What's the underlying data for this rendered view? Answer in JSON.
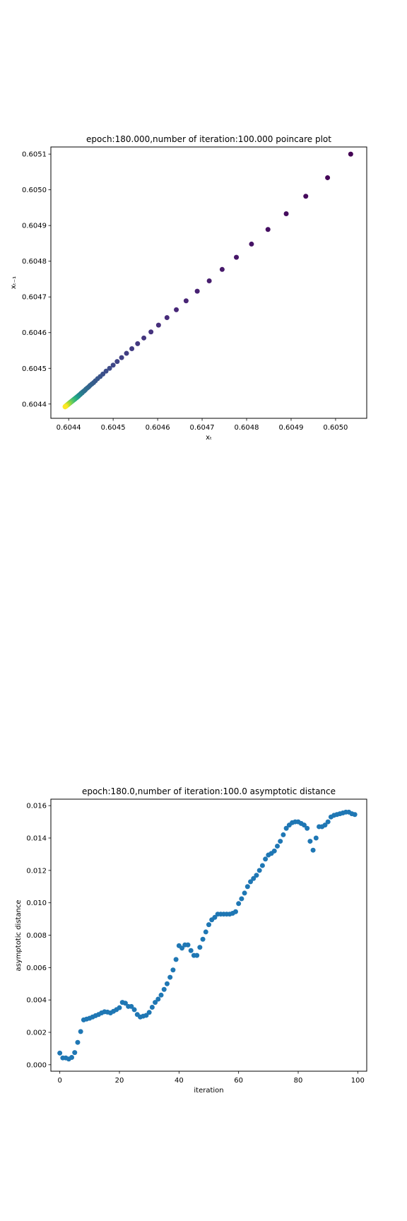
{
  "chart_data": [
    {
      "type": "scatter",
      "title": "epoch:180.000,number of iteration:100.000 poincare plot",
      "xlabel": "xₜ",
      "ylabel": "xₜ₋₁",
      "xlim": [
        0.60436,
        0.60507
      ],
      "ylim": [
        0.60436,
        0.60512
      ],
      "xticks": [
        "0.6044",
        "0.6045",
        "0.6046",
        "0.6047",
        "0.6048",
        "0.6049",
        "0.6050"
      ],
      "yticks": [
        "0.6044",
        "0.6045",
        "0.6046",
        "0.6047",
        "0.6048",
        "0.6049",
        "0.6050",
        "0.6051"
      ],
      "colormap": "viridis",
      "color_by": "point order (first point purple, last point yellow)",
      "series": [
        {
          "x": [
            0.605034,
            0.604982,
            0.604933,
            0.604889,
            0.604848,
            0.604811,
            0.604777,
            0.604745,
            0.604716,
            0.604689,
            0.604664,
            0.604642,
            0.604621,
            0.604602,
            0.604585,
            0.604569,
            0.604555,
            0.604542,
            0.60453,
            0.604519,
            0.604509,
            0.6045,
            0.604492,
            0.604484,
            0.604477,
            0.604471,
            0.604465,
            0.60446,
            0.604456,
            0.604452,
            0.604448,
            0.604445,
            0.604442,
            0.604439,
            0.604437,
            0.604435,
            0.604433,
            0.604431,
            0.60443,
            0.604428,
            0.604427,
            0.604426,
            0.604425,
            0.604424,
            0.604423,
            0.604422,
            0.604422,
            0.604421,
            0.60442,
            0.60442,
            0.604419,
            0.604418,
            0.604418,
            0.604417,
            0.604417,
            0.604416,
            0.604415,
            0.604415,
            0.604414,
            0.604414,
            0.604413,
            0.604412,
            0.604412,
            0.604411,
            0.60441,
            0.60441,
            0.604409,
            0.604408,
            0.604408,
            0.604407,
            0.604406,
            0.604406,
            0.604405,
            0.604404,
            0.604404,
            0.604403,
            0.604403,
            0.604402,
            0.604401,
            0.604401,
            0.6044,
            0.6044,
            0.604399,
            0.604399,
            0.604398,
            0.604398,
            0.604397,
            0.604397,
            0.604396,
            0.604396,
            0.604395,
            0.604395,
            0.604394,
            0.604394,
            0.604394,
            0.604393,
            0.604393,
            0.604392,
            0.604392
          ],
          "y": [
            0.6051,
            0.605034,
            0.604982,
            0.604933,
            0.604889,
            0.604848,
            0.604811,
            0.604777,
            0.604745,
            0.604716,
            0.604689,
            0.604664,
            0.604642,
            0.604621,
            0.604602,
            0.604585,
            0.604569,
            0.604555,
            0.604542,
            0.60453,
            0.604519,
            0.604509,
            0.6045,
            0.604492,
            0.604484,
            0.604477,
            0.604471,
            0.604465,
            0.60446,
            0.604456,
            0.604452,
            0.604448,
            0.604445,
            0.604442,
            0.604439,
            0.604437,
            0.604435,
            0.604433,
            0.604431,
            0.60443,
            0.604428,
            0.604427,
            0.604426,
            0.604425,
            0.604424,
            0.604423,
            0.604422,
            0.604422,
            0.604421,
            0.60442,
            0.60442,
            0.604419,
            0.604418,
            0.604418,
            0.604417,
            0.604417,
            0.604416,
            0.604415,
            0.604415,
            0.604414,
            0.604414,
            0.604413,
            0.604412,
            0.604412,
            0.604411,
            0.60441,
            0.60441,
            0.604409,
            0.604408,
            0.604408,
            0.604407,
            0.604406,
            0.604406,
            0.604405,
            0.604404,
            0.604404,
            0.604403,
            0.604403,
            0.604402,
            0.604401,
            0.604401,
            0.6044,
            0.6044,
            0.604399,
            0.604399,
            0.604398,
            0.604398,
            0.604397,
            0.604397,
            0.604396,
            0.604396,
            0.604395,
            0.604395,
            0.604394,
            0.604394,
            0.604394,
            0.604393,
            0.604393,
            0.604392
          ]
        }
      ],
      "grid": false
    },
    {
      "type": "scatter",
      "title": "epoch:180.0,number of iteration:100.0 asymptotic distance",
      "xlabel": "iteration",
      "ylabel": "asymptotic distance",
      "xlim": [
        -3,
        103
      ],
      "ylim": [
        -0.0004,
        0.0164
      ],
      "xticks": [
        "0",
        "20",
        "40",
        "60",
        "80",
        "100"
      ],
      "yticks": [
        "0.000",
        "0.002",
        "0.004",
        "0.006",
        "0.008",
        "0.010",
        "0.012",
        "0.014",
        "0.016"
      ],
      "color": "#1f77b4",
      "grid": false,
      "series": [
        {
          "x": [
            0,
            1,
            2,
            3,
            4,
            5,
            6,
            7,
            8,
            9,
            10,
            11,
            12,
            13,
            14,
            15,
            16,
            17,
            18,
            19,
            20,
            21,
            22,
            23,
            24,
            25,
            26,
            27,
            28,
            29,
            30,
            31,
            32,
            33,
            34,
            35,
            36,
            37,
            38,
            39,
            40,
            41,
            42,
            43,
            44,
            45,
            46,
            47,
            48,
            49,
            50,
            51,
            52,
            53,
            54,
            55,
            56,
            57,
            58,
            59,
            60,
            61,
            62,
            63,
            64,
            65,
            66,
            67,
            68,
            69,
            70,
            71,
            72,
            73,
            74,
            75,
            76,
            77,
            78,
            79,
            80,
            81,
            82,
            83,
            84,
            85,
            86,
            87,
            88,
            89,
            90,
            91,
            92,
            93,
            94,
            95,
            96,
            97,
            98,
            99
          ],
          "y": [
            0.00072,
            0.00042,
            0.00042,
            0.00035,
            0.00045,
            0.00075,
            0.00138,
            0.00205,
            0.00277,
            0.00282,
            0.00287,
            0.00295,
            0.00303,
            0.0031,
            0.0032,
            0.00327,
            0.00325,
            0.0032,
            0.0033,
            0.0034,
            0.00352,
            0.00385,
            0.0038,
            0.0036,
            0.0036,
            0.0034,
            0.0031,
            0.00295,
            0.003,
            0.00305,
            0.00323,
            0.00355,
            0.00385,
            0.00405,
            0.0043,
            0.00465,
            0.005,
            0.0054,
            0.00585,
            0.0065,
            0.00735,
            0.0072,
            0.0074,
            0.0074,
            0.00705,
            0.00675,
            0.00675,
            0.00725,
            0.00775,
            0.0082,
            0.00865,
            0.00895,
            0.0091,
            0.0093,
            0.0093,
            0.0093,
            0.0093,
            0.0093,
            0.00935,
            0.00945,
            0.00995,
            0.01025,
            0.0106,
            0.011,
            0.0113,
            0.0115,
            0.0117,
            0.012,
            0.0123,
            0.0127,
            0.01295,
            0.01305,
            0.0132,
            0.0135,
            0.0138,
            0.0142,
            0.0146,
            0.0148,
            0.01495,
            0.015,
            0.015,
            0.0149,
            0.0148,
            0.0146,
            0.0138,
            0.01325,
            0.014,
            0.0147,
            0.0147,
            0.0148,
            0.015,
            0.0153,
            0.0154,
            0.01545,
            0.0155,
            0.01555,
            0.0156,
            0.0156,
            0.0155,
            0.01545
          ]
        }
      ]
    }
  ]
}
